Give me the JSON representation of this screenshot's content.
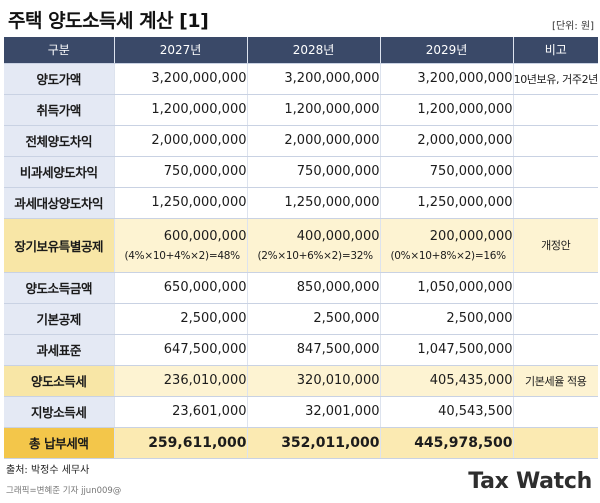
{
  "title": "주택 양도소득세 계산 [1]",
  "unit": "[단위: 원]",
  "table": {
    "headers": [
      "구분",
      "2027년",
      "2028년",
      "2029년",
      "비고"
    ],
    "rows": [
      {
        "label": "양도가액",
        "values": [
          "3,200,000,000",
          "3,200,000,000",
          "3,200,000,000"
        ],
        "note": "10년보유, 거주2년"
      },
      {
        "label": "취득가액",
        "values": [
          "1,200,000,000",
          "1,200,000,000",
          "1,200,000,000"
        ],
        "note": ""
      },
      {
        "label": "전체양도차익",
        "values": [
          "2,000,000,000",
          "2,000,000,000",
          "2,000,000,000"
        ],
        "note": ""
      },
      {
        "label": "비과세양도차익",
        "values": [
          "750,000,000",
          "750,000,000",
          "750,000,000"
        ],
        "note": ""
      },
      {
        "label": "과세대상양도차익",
        "values": [
          "1,250,000,000",
          "1,250,000,000",
          "1,250,000,000"
        ],
        "note": ""
      },
      {
        "label": "장기보유특별공제",
        "values": [
          "600,000,000",
          "400,000,000",
          "200,000,000"
        ],
        "rates": [
          "(4%×10+4%×2)=48%",
          "(2%×10+6%×2)=32%",
          "(0%×10+8%×2)=16%"
        ],
        "note": "개정안"
      },
      {
        "label": "양도소득금액",
        "values": [
          "650,000,000",
          "850,000,000",
          "1,050,000,000"
        ],
        "note": ""
      },
      {
        "label": "기본공제",
        "values": [
          "2,500,000",
          "2,500,000",
          "2,500,000"
        ],
        "note": ""
      },
      {
        "label": "과세표준",
        "values": [
          "647,500,000",
          "847,500,000",
          "1,047,500,000"
        ],
        "note": ""
      },
      {
        "label": "양도소득세",
        "values": [
          "236,010,000",
          "320,010,000",
          "405,435,000"
        ],
        "note": "기본세율 적용"
      },
      {
        "label": "지방소득세",
        "values": [
          "23,601,000",
          "32,001,000",
          "40,543,500"
        ],
        "note": ""
      },
      {
        "label": "총 납부세액",
        "values": [
          "259,611,000",
          "352,011,000",
          "445,978,500"
        ],
        "note": ""
      }
    ]
  },
  "source": "출처: 박정수 세무사",
  "credit": "그래픽=변혜준 기자 jjun009@",
  "logo": {
    "part1": "Tax",
    "part2": "Watch"
  }
}
